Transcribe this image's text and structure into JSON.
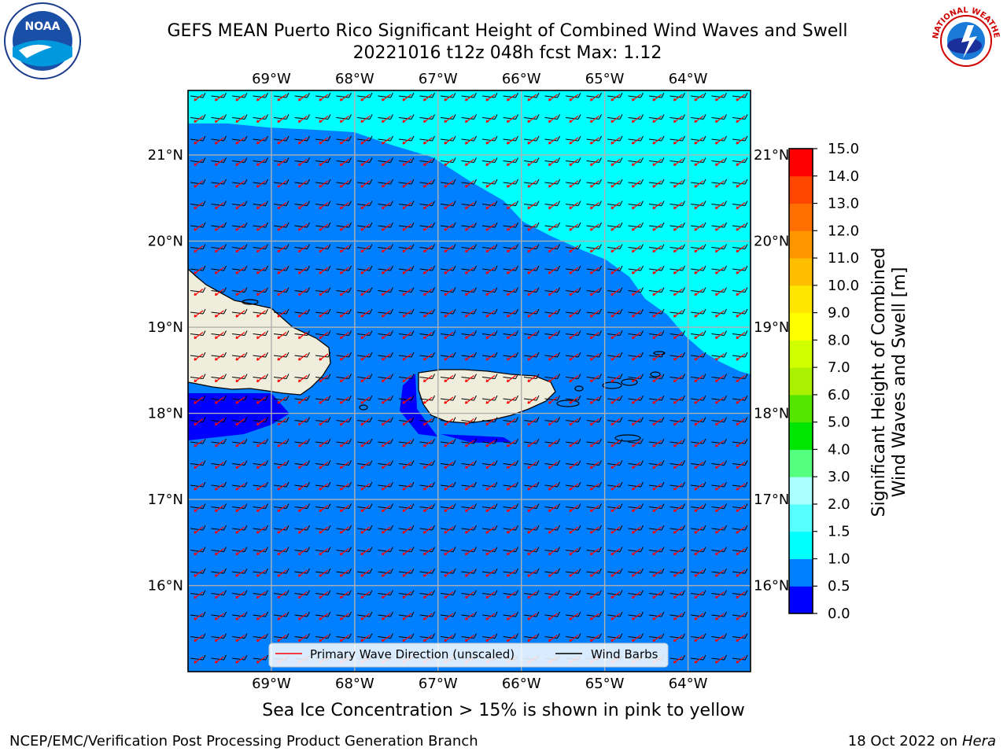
{
  "header": {
    "title_line1": "GEFS MEAN Puerto Rico Significant Height of Combined Wind Waves and Swell",
    "title_line2": "20221016 t12z 048h fcst   Max: 1.12"
  },
  "logos": {
    "left": {
      "name": "noaa-logo",
      "text": "NOAA"
    },
    "right": {
      "name": "nws-logo",
      "text": "NATIONAL WEATHER SERVICE"
    }
  },
  "map": {
    "lon_labels": [
      "69°W",
      "68°W",
      "67°W",
      "66°W",
      "65°W",
      "64°W"
    ],
    "lat_labels": [
      "21°N",
      "20°N",
      "19°N",
      "18°N",
      "17°N",
      "16°N"
    ],
    "lon_range": [
      -70.0,
      -63.25
    ],
    "lat_range": [
      15.0,
      21.75
    ],
    "colors": {
      "band_0_0_5": "#0000ff",
      "band_0_5_1_0": "#0080ff",
      "band_1_0_1_5": "#00ffff",
      "land": "#efeedc",
      "grid": "#b0b0b0",
      "wave_arrow": "#ff0000",
      "wind_barb": "#000000"
    }
  },
  "legend": {
    "primary_wave": "Primary Wave Direction (unscaled)",
    "wind_barbs": "Wind Barbs"
  },
  "colorbar": {
    "label_line1": "Significant Height of Combined",
    "label_line2": "Wind Waves and Swell [m]",
    "ticks": [
      "0.0",
      "0.5",
      "1.0",
      "1.5",
      "2.0",
      "3.0",
      "4.0",
      "5.0",
      "6.0",
      "7.0",
      "8.0",
      "9.0",
      "10.0",
      "11.0",
      "12.0",
      "13.0",
      "14.0",
      "15.0"
    ],
    "colors": [
      "#0000ff",
      "#0080ff",
      "#00ffff",
      "#55ffff",
      "#aaffff",
      "#55ff80",
      "#00e600",
      "#55e600",
      "#aaf000",
      "#d2ff00",
      "#ffff00",
      "#ffe600",
      "#ffbe00",
      "#ff9600",
      "#ff6e00",
      "#ff4600",
      "#ff0000"
    ]
  },
  "footer": {
    "sea_ice": "Sea Ice Concentration > 15% is shown in pink to yellow",
    "branch": "NCEP/EMC/Verification Post Processing Product Generation Branch",
    "date": "18 Oct 2022 on ",
    "host": "Hera"
  }
}
